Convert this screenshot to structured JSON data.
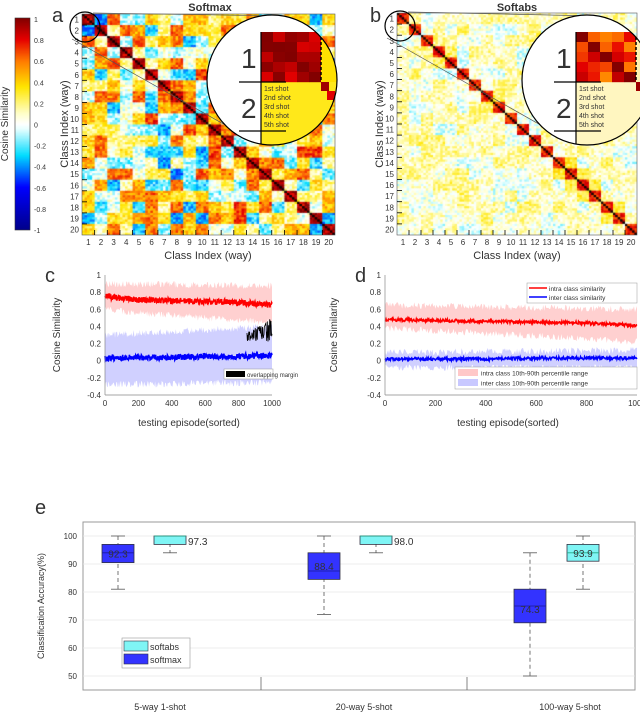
{
  "panel_labels": {
    "a": "a",
    "b": "b",
    "c": "c",
    "d": "d",
    "e": "e"
  },
  "colorbar": {
    "label": "Cosine Similarity",
    "ticks": [
      "1",
      "0.8",
      "0.6",
      "0.4",
      "0.2",
      "0",
      "-0.2",
      "-0.4",
      "-0.6",
      "-0.8",
      "-1"
    ],
    "range": [
      -1,
      1
    ],
    "colormap": "jet-white-center"
  },
  "chart_data": [
    {
      "type": "heatmap",
      "title": "Softmax",
      "xlabel": "Class Index (way)",
      "ylabel": "Class Index (way)",
      "ticks": [
        "1",
        "2",
        "3",
        "4",
        "5",
        "6",
        "7",
        "8",
        "9",
        "10",
        "11",
        "12",
        "13",
        "14",
        "15",
        "16",
        "17",
        "18",
        "19",
        "20"
      ],
      "shots_per_class": 5,
      "within_class_similarity": 0.9,
      "between_class_range": [
        -0.4,
        0.7
      ],
      "inset": {
        "class_labels": [
          "1",
          "2"
        ],
        "shot_labels": [
          "1st shot",
          "2nd shot",
          "3rd shot",
          "4th shot",
          "5th shot"
        ]
      }
    },
    {
      "type": "heatmap",
      "title": "Softabs",
      "xlabel": "Class Index (way)",
      "ylabel": "Class Index (way)",
      "ticks": [
        "1",
        "2",
        "3",
        "4",
        "5",
        "6",
        "7",
        "8",
        "9",
        "10",
        "11",
        "12",
        "13",
        "14",
        "15",
        "16",
        "17",
        "18",
        "19",
        "20"
      ],
      "shots_per_class": 5,
      "within_class_similarity": 0.75,
      "between_class_range": [
        -0.1,
        0.3
      ],
      "inset": {
        "class_labels": [
          "1",
          "2"
        ],
        "shot_labels": [
          "1st shot",
          "2nd shot",
          "3rd shot",
          "4th shot",
          "5th shot"
        ]
      }
    },
    {
      "type": "line",
      "xlabel": "testing episode(sorted)",
      "ylabel": "Cosine Similarity",
      "xlim": [
        0,
        1000
      ],
      "ylim": [
        -0.4,
        1
      ],
      "xticks": [
        "0",
        "200",
        "400",
        "600",
        "800",
        "1000"
      ],
      "yticks": [
        "1",
        "0.8",
        "0.6",
        "0.4",
        "0.2",
        "0",
        "-0.2",
        "-0.4"
      ],
      "x": [
        0,
        200,
        400,
        600,
        800,
        1000
      ],
      "series": [
        {
          "role": "intra mean",
          "color": "#ff0000",
          "values": [
            0.75,
            0.71,
            0.7,
            0.69,
            0.68,
            0.65
          ]
        },
        {
          "role": "intra band",
          "color": "#ffc8c8",
          "low": [
            0.6,
            0.56,
            0.53,
            0.5,
            0.47,
            0.45
          ],
          "high": [
            0.9,
            0.89,
            0.89,
            0.88,
            0.88,
            0.88
          ]
        },
        {
          "role": "inter mean",
          "color": "#0000ff",
          "values": [
            0.03,
            0.04,
            0.04,
            0.05,
            0.05,
            0.06
          ]
        },
        {
          "role": "inter band",
          "color": "#c8c8ff",
          "low": [
            -0.28,
            -0.27,
            -0.27,
            -0.26,
            -0.26,
            -0.25
          ],
          "high": [
            0.3,
            0.32,
            0.34,
            0.36,
            0.38,
            0.4
          ]
        }
      ],
      "legend": {
        "position": "bottom-right",
        "entries": [
          "overlapping margin"
        ]
      },
      "overlap": {
        "x_from": 850,
        "x_to": 1000,
        "range": [
          0.22,
          0.5
        ]
      }
    },
    {
      "type": "line",
      "xlabel": "testing episode(sorted)",
      "ylabel": "Cosine Similarity",
      "xlim": [
        0,
        1000
      ],
      "ylim": [
        -0.4,
        1
      ],
      "xticks": [
        "0",
        "200",
        "400",
        "600",
        "800",
        "1000"
      ],
      "yticks": [
        "1",
        "0.8",
        "0.6",
        "0.4",
        "0.2",
        "0",
        "-0.2",
        "-0.4"
      ],
      "x": [
        0,
        200,
        400,
        600,
        800,
        1000
      ],
      "series": [
        {
          "name": "intra class 10th-90th percentile range",
          "color": "#ffc8c8",
          "low": [
            0.38,
            0.35,
            0.32,
            0.29,
            0.26,
            0.22
          ],
          "high": [
            0.65,
            0.64,
            0.63,
            0.62,
            0.61,
            0.6
          ]
        },
        {
          "name": "inter class 10th-90th percentile range",
          "color": "#c8c8ff",
          "low": [
            -0.08,
            -0.08,
            -0.08,
            -0.08,
            -0.08,
            -0.08
          ],
          "high": [
            0.1,
            0.1,
            0.11,
            0.11,
            0.12,
            0.12
          ]
        },
        {
          "name": "intra class similarity",
          "color": "#ff0000",
          "values": [
            0.48,
            0.47,
            0.46,
            0.45,
            0.44,
            0.41
          ]
        },
        {
          "name": "inter class similarity",
          "color": "#0000ff",
          "values": [
            0.02,
            0.02,
            0.02,
            0.03,
            0.03,
            0.03
          ]
        }
      ],
      "legend": {
        "position": "top-right / bottom-right"
      }
    },
    {
      "type": "box",
      "ylabel": "Classification Accuracy(%)",
      "ylim": [
        45,
        105
      ],
      "yticks": [
        "100",
        "90",
        "80",
        "70",
        "60",
        "50"
      ],
      "categories": [
        "5-way 1-shot",
        "20-way 5-shot",
        "100-way 5-shot"
      ],
      "series": [
        {
          "name": "softmax",
          "color": "#3333ff",
          "boxes": [
            {
              "min": 81,
              "q1": 90.5,
              "median": 94,
              "q3": 97,
              "max": 100,
              "label": "92.3"
            },
            {
              "min": 72,
              "q1": 84.5,
              "median": 87.5,
              "q3": 94,
              "max": 100,
              "label": "88.4"
            },
            {
              "min": 50,
              "q1": 69,
              "median": 75,
              "q3": 81,
              "max": 94,
              "label": "74.3"
            }
          ]
        },
        {
          "name": "softabs",
          "color": "#7ff5f5",
          "boxes": [
            {
              "min": 94,
              "q1": 97,
              "median": 100,
              "q3": 100,
              "max": 100,
              "label": "97.3"
            },
            {
              "min": 94,
              "q1": 97,
              "median": 100,
              "q3": 100,
              "max": 100,
              "label": "98.0"
            },
            {
              "min": 81,
              "q1": 91,
              "median": 94,
              "q3": 97,
              "max": 100,
              "label": "93.9"
            }
          ]
        }
      ],
      "legend": {
        "position": "bottom-left",
        "entries": [
          "softabs",
          "softmax"
        ]
      }
    }
  ]
}
